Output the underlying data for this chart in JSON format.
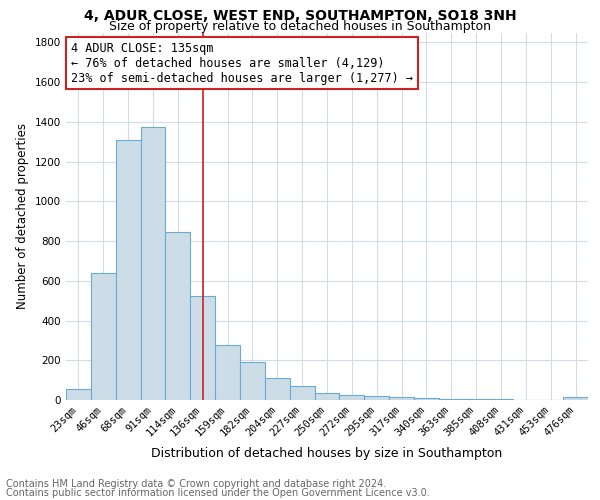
{
  "title": "4, ADUR CLOSE, WEST END, SOUTHAMPTON, SO18 3NH",
  "subtitle": "Size of property relative to detached houses in Southampton",
  "xlabel": "Distribution of detached houses by size in Southampton",
  "ylabel": "Number of detached properties",
  "categories": [
    "23sqm",
    "46sqm",
    "68sqm",
    "91sqm",
    "114sqm",
    "136sqm",
    "159sqm",
    "182sqm",
    "204sqm",
    "227sqm",
    "250sqm",
    "272sqm",
    "295sqm",
    "317sqm",
    "340sqm",
    "363sqm",
    "385sqm",
    "408sqm",
    "431sqm",
    "453sqm",
    "476sqm"
  ],
  "values": [
    55,
    640,
    1310,
    1375,
    845,
    525,
    275,
    190,
    110,
    70,
    35,
    25,
    20,
    15,
    10,
    5,
    5,
    3,
    2,
    1,
    15
  ],
  "bar_color": "#ccdde8",
  "bar_edge_color": "#6aaad4",
  "grid_color": "#d0dce8",
  "vline_x_index": 5,
  "vline_color": "#cc2222",
  "annotation_text": "4 ADUR CLOSE: 135sqm\n← 76% of detached houses are smaller (4,129)\n23% of semi-detached houses are larger (1,277) →",
  "annotation_box_color": "#ffffff",
  "annotation_box_edge_color": "#cc2222",
  "ylim": [
    0,
    1850
  ],
  "yticks": [
    0,
    200,
    400,
    600,
    800,
    1000,
    1200,
    1400,
    1600,
    1800
  ],
  "footer1": "Contains HM Land Registry data © Crown copyright and database right 2024.",
  "footer2": "Contains public sector information licensed under the Open Government Licence v3.0.",
  "title_fontsize": 10,
  "subtitle_fontsize": 9,
  "xlabel_fontsize": 9,
  "ylabel_fontsize": 8.5,
  "tick_fontsize": 7.5,
  "annotation_fontsize": 8.5,
  "footer_fontsize": 7
}
